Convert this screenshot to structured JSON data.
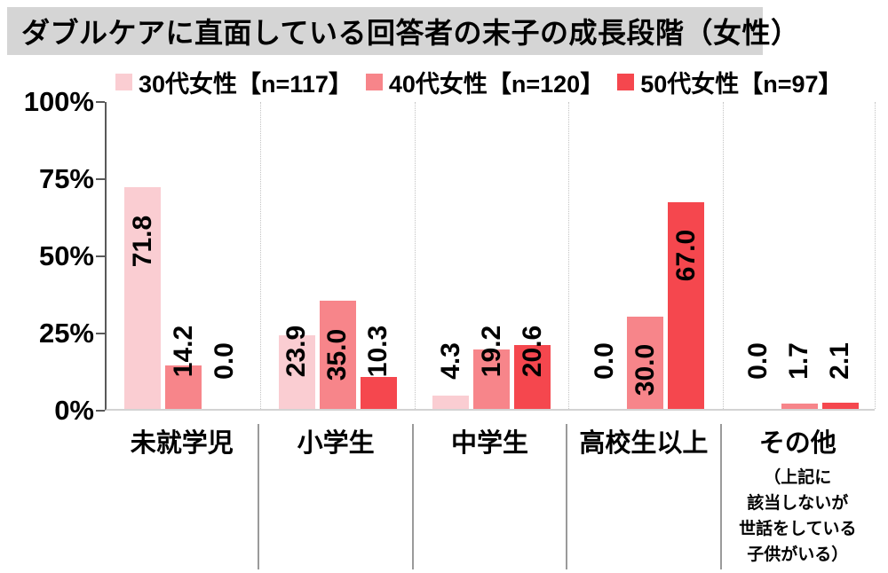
{
  "title_bar": {
    "text": "ダブルケアに直面している回答者の末子の成長段階（女性）",
    "background": "#d5d5d5",
    "text_color": "#000000"
  },
  "chart_data": {
    "type": "bar",
    "title": "ダブルケアに直面している回答者の末子の成長段階（女性）",
    "categories": [
      "未就学児",
      "小学生",
      "中学生",
      "高校生以上",
      "その他"
    ],
    "last_category_note_lines": [
      "（上記に",
      "該当しないが",
      "世話をしている",
      "子供がいる）"
    ],
    "series": [
      {
        "name": "30代女性【n=117】",
        "color": "#facdd2",
        "values": [
          71.8,
          23.9,
          4.3,
          0.0,
          0.0
        ]
      },
      {
        "name": "40代女性【n=120】",
        "color": "#f7858a",
        "values": [
          14.2,
          35.0,
          19.2,
          30.0,
          1.7
        ]
      },
      {
        "name": "50代女性【n=97】",
        "color": "#f5474e",
        "values": [
          0.0,
          10.3,
          20.6,
          67.0,
          2.1
        ]
      }
    ],
    "value_label_format": "one-decimal-rotated-90",
    "y_ticks": [
      {
        "value": 0,
        "label": "0%"
      },
      {
        "value": 25,
        "label": "25%"
      },
      {
        "value": 50,
        "label": "50%"
      },
      {
        "value": 75,
        "label": "75%"
      },
      {
        "value": 100,
        "label": "100%"
      }
    ],
    "ylim": [
      0,
      100
    ],
    "xlabel": "",
    "ylabel": "",
    "legend_position": "top",
    "grid": "vertical dotted separators between categories; no horizontal gridlines"
  },
  "colors": {
    "axis_line": "#595959",
    "baseline": "#d3d3d3",
    "separator_dotted": "#c3c3c3",
    "separator_solid": "#9a9a9a",
    "label_text": "#000000",
    "background": "#ffffff"
  }
}
